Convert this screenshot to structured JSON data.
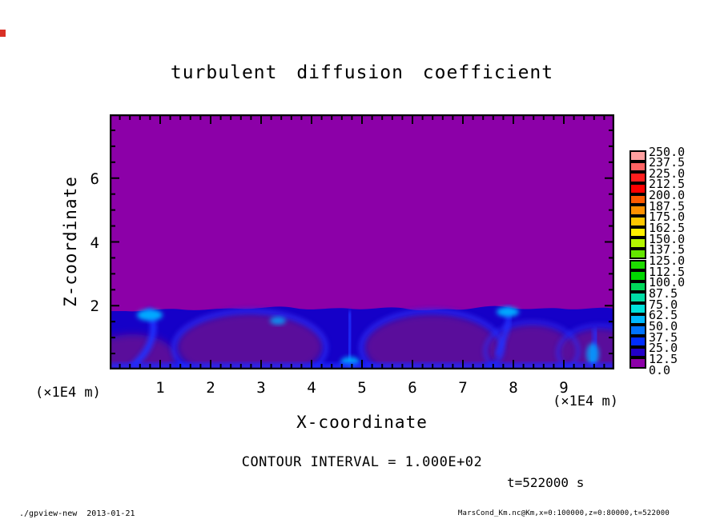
{
  "title": "turbulent diffusion coefficient",
  "axes": {
    "x": {
      "label": "X-coordinate",
      "unit": "(×1E4 m)",
      "ticks": [
        "1",
        "2",
        "3",
        "4",
        "5",
        "6",
        "7",
        "8",
        "9"
      ]
    },
    "y": {
      "label": "Z-coordinate",
      "unit": "(×1E4 m)",
      "ticks": [
        "6",
        "4",
        "2"
      ]
    }
  },
  "annotations": {
    "contour_interval": "CONTOUR INTERVAL = 1.000E+02",
    "time": "t=522000 s"
  },
  "footer": {
    "left": "./gpview-new  2013-01-21",
    "right": "MarsCond_Km.nc@Km,x=0:100000,z=0:80000,t=522000"
  },
  "colorbar": {
    "labels": [
      "250.0",
      "237.5",
      "225.0",
      "212.5",
      "200.0",
      "187.5",
      "175.0",
      "162.5",
      "150.0",
      "137.5",
      "125.0",
      "112.5",
      "100.0",
      "87.5",
      "75.0",
      "62.5",
      "50.0",
      "37.5",
      "25.0",
      "12.5",
      "0.0"
    ],
    "colors": [
      "#FFA0A0",
      "#FF6464",
      "#FF1E1E",
      "#FF0000",
      "#FF5A00",
      "#FF9100",
      "#FFC800",
      "#FFF000",
      "#B4F500",
      "#64E600",
      "#1EDC00",
      "#00D700",
      "#00D75A",
      "#00DCA5",
      "#00E1DC",
      "#00B9FF",
      "#0073FF",
      "#002DFF",
      "#2200C8",
      "#8C00A8"
    ]
  },
  "palette": {
    "purple": "#8C00A8",
    "layer_base": "#1500C8",
    "core_purple": "#5A0D9B",
    "plume_blue": "#2333FF",
    "accent_cyan": "#00AAFF",
    "bottom_glow": "#1E2BFF",
    "frame": "#000000",
    "artifact_red": "#D93025"
  },
  "chart_data": {
    "type": "heatmap",
    "title": "turbulent diffusion coefficient",
    "xlabel": "X-coordinate",
    "ylabel": "Z-coordinate",
    "x_unit": "(×1E4 m)",
    "y_unit": "(×1E4 m)",
    "xlim": [
      0,
      10
    ],
    "ylim": [
      0,
      8
    ],
    "x_ticks": [
      1,
      2,
      3,
      4,
      5,
      6,
      7,
      8,
      9
    ],
    "y_ticks": [
      2,
      4,
      6
    ],
    "grid": false,
    "legend_position": "right colorbar",
    "levels": [
      0.0,
      12.5,
      25.0,
      37.5,
      50.0,
      62.5,
      75.0,
      87.5,
      100.0,
      112.5,
      125.0,
      137.5,
      150.0,
      162.5,
      175.0,
      187.5,
      200.0,
      212.5,
      225.0,
      237.5,
      250.0
    ],
    "contour_interval": "1.000E+02",
    "time": "t=522000 s",
    "field_summary": {
      "upper_region": {
        "z_range_x1E4m": [
          2,
          8
        ],
        "value_range": [
          0,
          12.5
        ],
        "appearance": "uniform purple"
      },
      "boundary_layer": {
        "z_range_x1E4m": [
          0,
          2
        ],
        "value_range": [
          12.5,
          100
        ],
        "appearance": "convective turbulent layer: ~5 cells with purple low-Km cores, blue cell walls, brightest cyan updrafts near x≈1.0, 4.7, 6.5 and 9.5 (×1E4 m)"
      }
    }
  }
}
